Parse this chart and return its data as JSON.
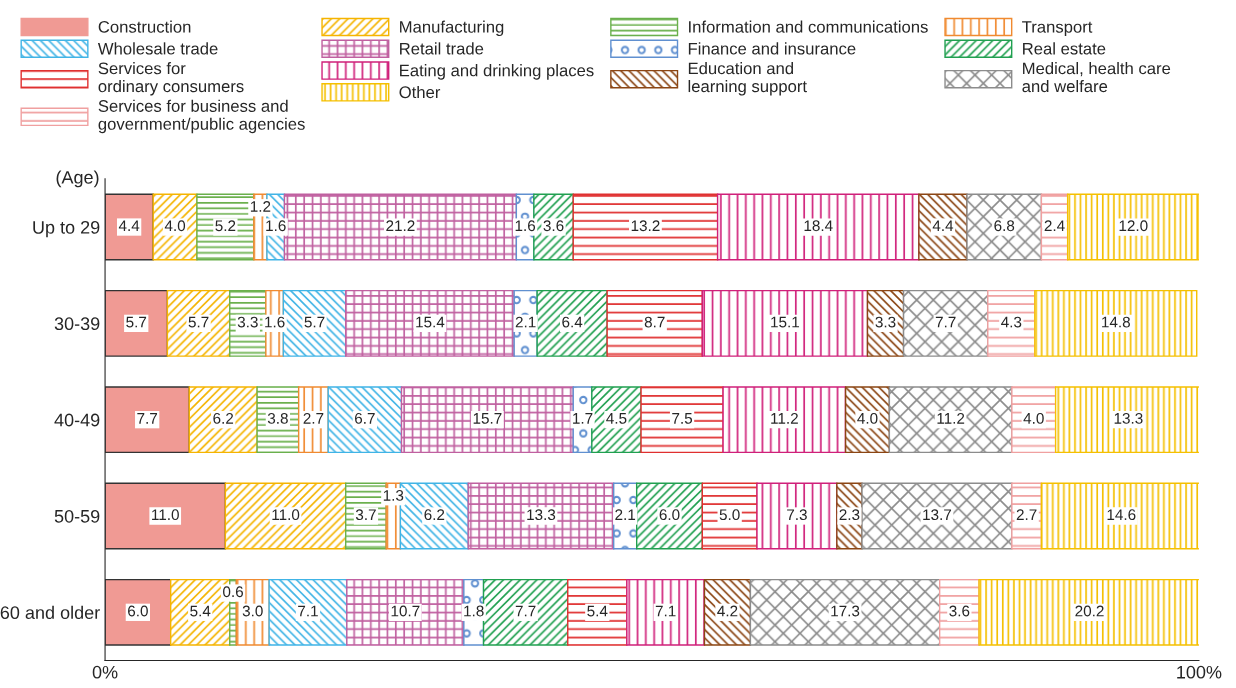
{
  "chart_data": {
    "type": "bar",
    "orientation": "horizontal",
    "stacked": true,
    "legend": "top",
    "grid": false,
    "categories": [
      "Up to 29",
      "30-39",
      "40-49",
      "50-59",
      "60 and older"
    ],
    "xlim": [
      0,
      100
    ],
    "xticks": [
      {
        "value": 0,
        "label": "0%"
      },
      {
        "value": 100,
        "label": "100%"
      }
    ],
    "annotations": [
      "(Age)"
    ],
    "series": [
      {
        "name": "Construction",
        "color": "#f09a94",
        "values": [
          4.4,
          5.7,
          7.7,
          11.0,
          6.0
        ],
        "value_labels": [
          "4.4",
          "5.7",
          "7.7",
          "11.0",
          "6.0"
        ]
      },
      {
        "name": "Manufacturing",
        "color": "#f5b400",
        "values": [
          4.0,
          5.7,
          6.2,
          11.0,
          5.4
        ],
        "value_labels": [
          "4.0",
          "5.7",
          "6.2",
          "11.0",
          "5.4"
        ]
      },
      {
        "name": "Information and communications",
        "color": "#6ab04c",
        "values": [
          5.2,
          3.3,
          3.8,
          3.7,
          0.6
        ],
        "value_labels": [
          "5.2",
          "3.3",
          "3.8",
          "3.7",
          "0.6"
        ]
      },
      {
        "name": "Transport",
        "color": "#f08a30",
        "values": [
          1.2,
          1.6,
          2.7,
          1.3,
          3.0
        ],
        "value_labels": [
          "1.2",
          "1.6",
          "2.7",
          "1.3",
          "3.0"
        ]
      },
      {
        "name": "Wholesale trade",
        "color": "#40b4e6",
        "values": [
          1.6,
          5.7,
          6.7,
          6.2,
          7.1
        ],
        "value_labels": [
          "1.6",
          "5.7",
          "6.7",
          "6.2",
          "7.1"
        ]
      },
      {
        "name": "Retail trade",
        "color": "#c060a0",
        "values": [
          21.2,
          15.4,
          15.7,
          13.3,
          10.7
        ],
        "value_labels": [
          "21.2",
          "15.4",
          "15.7",
          "13.3",
          "10.7"
        ]
      },
      {
        "name": "Finance and insurance",
        "color": "#6090d0",
        "values": [
          1.6,
          2.1,
          1.7,
          2.1,
          1.8
        ],
        "value_labels": [
          "1.6",
          "2.1",
          "1.7",
          "2.1",
          "1.8"
        ]
      },
      {
        "name": "Real estate",
        "color": "#20a050",
        "values": [
          3.6,
          6.4,
          4.5,
          6.0,
          7.7
        ],
        "value_labels": [
          "3.6",
          "6.4",
          "4.5",
          "6.0",
          "7.7"
        ]
      },
      {
        "name": "Services for\nordinary consumers",
        "color": "#e03030",
        "values": [
          13.2,
          8.7,
          7.5,
          5.0,
          5.4
        ],
        "value_labels": [
          "13.2",
          "8.7",
          "7.5",
          "5.0",
          "5.4"
        ]
      },
      {
        "name": "Eating and drinking places",
        "color": "#d0207a",
        "values": [
          18.4,
          15.1,
          11.2,
          7.3,
          7.1
        ],
        "value_labels": [
          "18.4",
          "15.1",
          "11.2",
          "7.3",
          "7.1"
        ]
      },
      {
        "name": "Education and\nlearning support",
        "color": "#8b4513",
        "values": [
          4.4,
          3.3,
          4.0,
          2.3,
          4.2
        ],
        "value_labels": [
          "4.4",
          "3.3",
          "4.0",
          "2.3",
          "4.2"
        ]
      },
      {
        "name": "Medical, health care\nand welfare",
        "color": "#8c8c8c",
        "values": [
          6.8,
          7.7,
          11.2,
          13.7,
          17.3
        ],
        "value_labels": [
          "6.8",
          "7.7",
          "11.2",
          "13.7",
          "17.3"
        ]
      },
      {
        "name": "Services for business and\ngovernment/public agencies",
        "color": "#f0a0a0",
        "values": [
          2.4,
          4.3,
          4.0,
          2.7,
          3.6
        ],
        "value_labels": [
          "2.4",
          "4.3",
          "4.0",
          "2.7",
          "3.6"
        ]
      },
      {
        "name": "Other",
        "color": "#f5c000",
        "values": [
          12.0,
          14.8,
          13.3,
          14.6,
          20.2
        ],
        "value_labels": [
          "12.0",
          "14.8",
          "13.3",
          "14.6",
          "20.2"
        ]
      }
    ]
  }
}
